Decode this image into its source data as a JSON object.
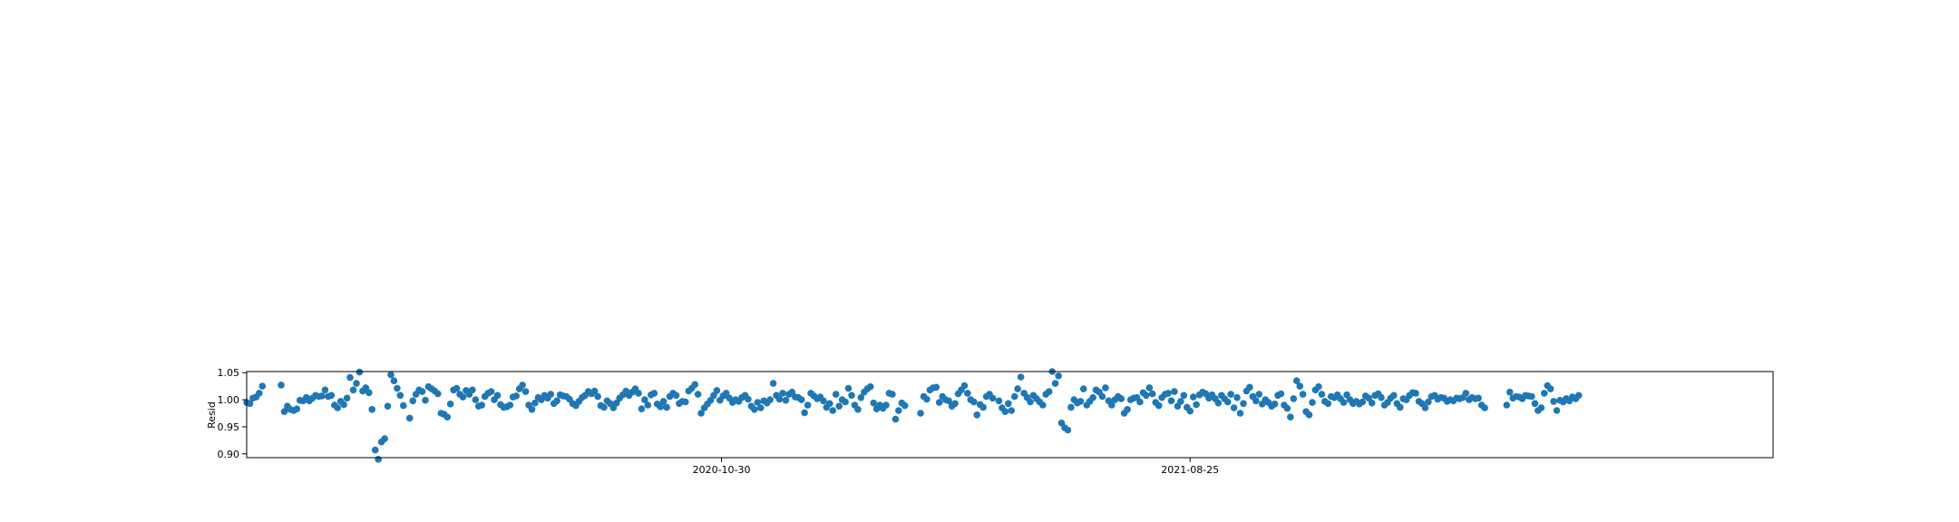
{
  "chart_data": {
    "type": "scatter",
    "title": "",
    "xlabel": "",
    "ylabel": "Resid",
    "ylim": [
      0.893,
      1.052
    ],
    "xlim": [
      "2020-01-01",
      "2022-09-01"
    ],
    "x_ticks": [
      "2020-10-30",
      "2021-08-25"
    ],
    "y_ticks": [
      "0.90",
      "0.95",
      "1.00",
      "1.05"
    ],
    "grid": false,
    "legend": "none",
    "marker_color": "#1f77b4",
    "series": [
      {
        "x_start": "2020-01-01",
        "x_step_days": 2,
        "y": [
          0.995,
          0.993,
          1.003,
          1.005,
          1.012,
          1.025,
          null,
          null,
          null,
          null,
          null,
          1.027,
          0.978,
          0.988,
          0.982,
          0.98,
          0.983,
          0.999,
          0.998,
          1.004,
          0.998,
          1.003,
          1.008,
          1.006,
          1.007,
          1.018,
          1.006,
          1.008,
          0.99,
          0.985,
          0.997,
          0.991,
          1.003,
          1.041,
          1.018,
          1.03,
          1.051,
          1.016,
          1.022,
          1.013,
          0.982,
          0.907,
          0.89,
          0.922,
          0.928,
          0.988,
          1.046,
          1.035,
          1.021,
          1.008,
          0.989,
          null,
          0.966,
          0.998,
          1.01,
          1.018,
          1.015,
          0.999,
          1.024,
          1.02,
          1.016,
          1.011,
          0.975,
          0.973,
          0.968,
          0.992,
          1.018,
          1.021,
          1.01,
          1.005,
          1.017,
          1.01,
          1.018,
          1.0,
          0.988,
          0.99,
          1.006,
          1.012,
          1.015,
          1.0,
          1.008,
          0.991,
          0.986,
          0.987,
          0.99,
          1.005,
          1.007,
          1.02,
          1.027,
          1.015,
          0.99,
          0.982,
          0.994,
          1.004,
          1.0,
          1.008,
          1.003,
          1.01,
          0.993,
          0.998,
          1.009,
          1.007,
          1.006,
          1.001,
          0.993,
          0.989,
          0.997,
          1.004,
          1.008,
          1.015,
          1.011,
          1.016,
          1.006,
          0.989,
          0.986,
          0.998,
          0.993,
          0.985,
          0.994,
          1.003,
          1.009,
          1.016,
          1.008,
          1.014,
          1.02,
          1.012,
          0.983,
          1.0,
          0.99,
          1.009,
          1.012,
          0.992,
          0.987,
          0.997,
          0.986,
          1.006,
          1.012,
          1.008,
          0.993,
          0.997,
          0.996,
          1.016,
          1.021,
          1.028,
          1.01,
          0.975,
          0.985,
          0.992,
          0.999,
          1.008,
          1.017,
          0.999,
          1.007,
          1.012,
          1.003,
          0.995,
          1.0,
          0.997,
          1.004,
          1.008,
          1.001,
          0.988,
          0.982,
          0.995,
          0.985,
          0.998,
          0.994,
          1.0,
          1.03,
          1.008,
          1.001,
          1.012,
          0.999,
          1.01,
          1.014,
          1.005,
          1.004,
          1.0,
          0.976,
          0.99,
          1.012,
          1.007,
          1.002,
          1.005,
          0.998,
          0.986,
          0.993,
          0.98,
          1.01,
          0.988,
          1.0,
          0.996,
          1.021,
          1.008,
          0.99,
          0.982,
          1.004,
          1.014,
          1.02,
          1.024,
          0.994,
          0.983,
          0.99,
          0.984,
          0.99,
          1.012,
          1.01,
          0.964,
          0.98,
          0.994,
          0.989,
          null,
          null,
          null,
          null,
          0.975,
          1.006,
          1.001,
          1.018,
          1.022,
          1.023,
          0.995,
          1.006,
          1.0,
          0.998,
          0.988,
          0.993,
          1.011,
          1.018,
          1.026,
          1.012,
          1.0,
          0.996,
          0.972,
          0.991,
          0.986,
          1.006,
          1.01,
          1.003,
          null,
          0.998,
          0.985,
          0.978,
          0.993,
          0.98,
          1.006,
          1.02,
          1.042,
          1.012,
          1.004,
          0.996,
          1.008,
          1.002,
          0.996,
          0.99,
          1.01,
          1.015,
          1.052,
          1.03,
          1.044,
          0.957,
          0.948,
          0.944,
          0.986,
          1.0,
          0.994,
          0.997,
          1.02,
          0.99,
          0.997,
          1.004,
          1.018,
          1.014,
          1.006,
          1.022,
          0.998,
          0.99,
          1.0,
          1.006,
          1.002,
          0.975,
          0.982,
          1.0,
          1.003,
          1.004,
          0.996,
          1.013,
          1.008,
          1.022,
          1.011,
          0.995,
          0.989,
          1.004,
          1.01,
          1.012,
          0.998,
          1.015,
          0.988,
          0.997,
          1.008,
          0.986,
          0.979,
          1.005,
          0.991,
          1.009,
          1.014,
          1.011,
          1.003,
          1.009,
          1.002,
          0.994,
          1.008,
          1.002,
          0.996,
          1.01,
          0.985,
          1.004,
          0.975,
          0.993,
          1.016,
          1.023,
          1.006,
          0.998,
          1.01,
          0.992,
          1.0,
          0.995,
          0.988,
          0.992,
          1.008,
          1.011,
          0.99,
          0.984,
          0.968,
          1.002,
          1.035,
          1.025,
          1.01,
          0.978,
          0.972,
          0.995,
          1.018,
          1.024,
          1.01,
          0.997,
          0.993,
          1.006,
          1.004,
          1.009,
          1.002,
          0.995,
          1.009,
          1.0,
          0.993,
          0.997,
          0.992,
          0.996,
          1.007,
          1.003,
          0.994,
          1.008,
          1.011,
          1.004,
          0.99,
          0.995,
          1.003,
          1.008,
          0.993,
          0.986,
          1.002,
          1.0,
          1.008,
          1.013,
          1.012,
          0.997,
          0.993,
          0.985,
          0.996,
          1.006,
          1.008,
          1.001,
          1.004,
          1.003,
          0.997,
          1.0,
          0.998,
          1.003,
          1.002,
          1.004,
          1.012,
          1.0,
          1.004,
          1.002,
          1.003,
          0.99,
          0.985,
          null,
          null,
          null,
          null,
          null,
          null,
          0.99,
          1.014,
          1.003,
          1.006,
          1.005,
          1.002,
          1.008,
          1.007,
          1.006,
          0.993,
          0.98,
          0.985,
          1.012,
          1.026,
          1.02,
          0.997,
          0.98,
          0.999,
          0.996,
          1.002,
          0.998,
          1.005,
          1.002,
          1.008
        ]
      }
    ]
  }
}
